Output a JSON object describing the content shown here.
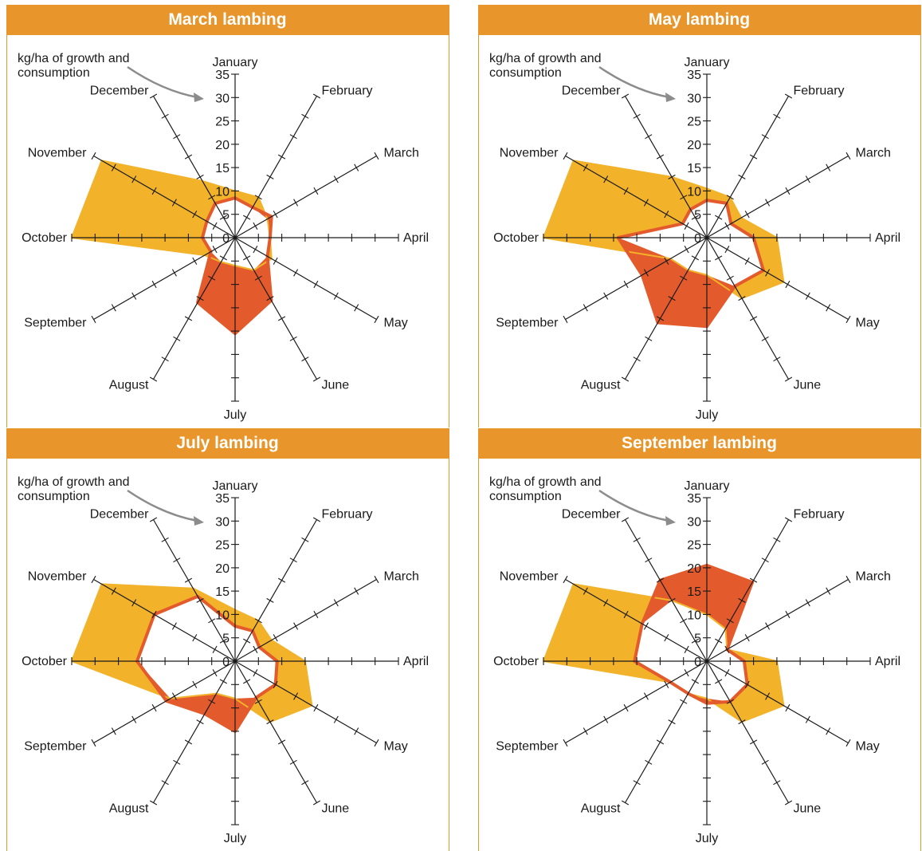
{
  "colors": {
    "header": "#e8962c",
    "growth": "#f2b22a",
    "consumption": "#e35a2c",
    "axis": "#1a1a1a",
    "arrow": "#8c8c8c"
  },
  "annotation": {
    "line1": "kg/ha of growth and",
    "line2": "consumption"
  },
  "chart_data": [
    {
      "type": "radar",
      "title": "March lambing",
      "categories": [
        "January",
        "February",
        "March",
        "April",
        "May",
        "June",
        "July",
        "August",
        "September",
        "October",
        "November",
        "December"
      ],
      "rlim": [
        0,
        35
      ],
      "ticks": [
        "0",
        "5",
        "10",
        "15",
        "20",
        "25",
        "30",
        "35"
      ],
      "grid": false,
      "series": [
        {
          "values": [
            10,
            10,
            8,
            7.5,
            9,
            8,
            6,
            6,
            7.5,
            35,
            33,
            14
          ]
        },
        {
          "values": [
            8.5,
            7.5,
            9,
            7.5,
            8,
            15.5,
            20.5,
            16,
            6,
            7,
            7,
            8.5
          ]
        }
      ]
    },
    {
      "type": "radar",
      "title": "May lambing",
      "categories": [
        "January",
        "February",
        "March",
        "April",
        "May",
        "June",
        "July",
        "August",
        "September",
        "October",
        "November",
        "December"
      ],
      "rlim": [
        0,
        35
      ],
      "ticks": [
        "0",
        "5",
        "10",
        "15",
        "20",
        "25",
        "30",
        "35"
      ],
      "grid": false,
      "series": [
        {
          "values": [
            10.5,
            10,
            8.5,
            15,
            19,
            15,
            8,
            8,
            9,
            35,
            33,
            15
          ]
        },
        {
          "values": [
            8,
            8.5,
            6,
            10,
            14,
            12,
            19,
            21,
            16,
            19,
            6,
            7
          ]
        }
      ]
    },
    {
      "type": "radar",
      "title": "July lambing",
      "categories": [
        "January",
        "February",
        "March",
        "April",
        "May",
        "June",
        "July",
        "August",
        "September",
        "October",
        "November",
        "December"
      ],
      "rlim": [
        0,
        35
      ],
      "ticks": [
        "0",
        "5",
        "10",
        "15",
        "20",
        "25",
        "30",
        "35"
      ],
      "grid": false,
      "series": [
        {
          "values": [
            11,
            10,
            9,
            15,
            19,
            15,
            8,
            8,
            16,
            35,
            33,
            18
          ]
        },
        {
          "values": [
            7.5,
            7.5,
            6,
            9,
            10,
            9,
            15,
            13,
            17,
            21,
            20,
            16
          ]
        }
      ]
    },
    {
      "type": "radar",
      "title": "September lambing",
      "categories": [
        "January",
        "February",
        "March",
        "April",
        "May",
        "June",
        "July",
        "August",
        "September",
        "October",
        "November",
        "December"
      ],
      "rlim": [
        0,
        35
      ],
      "ticks": [
        "0",
        "5",
        "10",
        "15",
        "20",
        "25",
        "30",
        "35"
      ],
      "grid": false,
      "series": [
        {
          "values": [
            10,
            8,
            5,
            15,
            19,
            15,
            8,
            8,
            9,
            35,
            33,
            15
          ]
        },
        {
          "values": [
            20.5,
            19.5,
            5,
            8,
            10,
            10,
            9,
            8,
            9,
            15.5,
            16,
            20
          ]
        }
      ]
    }
  ]
}
